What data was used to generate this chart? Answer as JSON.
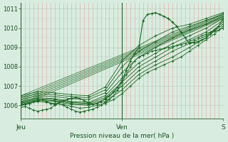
{
  "xlabel": "Pression niveau de la mer( hPa )",
  "bg_color": "#d8ede0",
  "line_color": "#1a6620",
  "axis_color": "#2d5a2d",
  "text_color": "#1a5020",
  "grid_v_color": "#e8a0a0",
  "grid_h_color": "#b8d0c0",
  "ylim": [
    1005.3,
    1011.3
  ],
  "yticks": [
    1006,
    1007,
    1008,
    1009,
    1010,
    1011
  ],
  "xlim": [
    0,
    48
  ],
  "x_jeu": 0,
  "x_ven": 24,
  "x_sam": 48,
  "num_vgrid": 48,
  "series": [
    [
      0,
      1005.9,
      1,
      1005.95,
      2,
      1005.85,
      3,
      1005.75,
      4,
      1005.7,
      5,
      1005.75,
      6,
      1005.8,
      7,
      1005.85,
      8,
      1006.0,
      9,
      1006.1,
      10,
      1006.0,
      11,
      1005.9,
      12,
      1005.8,
      13,
      1005.7,
      14,
      1005.65,
      15,
      1005.7,
      16,
      1005.75,
      17,
      1005.8,
      18,
      1005.9,
      19,
      1006.0,
      20,
      1006.15,
      21,
      1006.3,
      22,
      1006.5,
      23,
      1006.8,
      24,
      1007.2,
      25,
      1007.6,
      26,
      1008.0,
      27,
      1008.3,
      28,
      1008.5,
      29,
      1008.6,
      30,
      1008.7,
      31,
      1008.8,
      32,
      1008.85,
      33,
      1008.9,
      34,
      1008.95,
      35,
      1009.0,
      36,
      1009.05,
      37,
      1009.1,
      38,
      1009.15,
      39,
      1009.2,
      40,
      1009.3,
      41,
      1009.4,
      42,
      1009.5,
      43,
      1009.6,
      44,
      1009.7,
      45,
      1009.8,
      46,
      1009.85,
      47,
      1009.9,
      48,
      1010.0
    ],
    [
      0,
      1006.0,
      2,
      1006.1,
      4,
      1006.2,
      6,
      1006.15,
      8,
      1006.1,
      10,
      1006.05,
      12,
      1005.95,
      14,
      1005.85,
      16,
      1005.9,
      18,
      1006.0,
      20,
      1006.1,
      22,
      1006.3,
      24,
      1006.6,
      26,
      1007.0,
      28,
      1007.4,
      30,
      1007.7,
      32,
      1007.9,
      34,
      1008.1,
      36,
      1008.3,
      38,
      1008.5,
      40,
      1008.8,
      42,
      1009.1,
      44,
      1009.4,
      46,
      1009.7,
      48,
      1010.1
    ],
    [
      0,
      1006.05,
      4,
      1006.25,
      8,
      1006.2,
      12,
      1006.05,
      16,
      1006.0,
      20,
      1006.2,
      24,
      1006.8,
      28,
      1007.6,
      32,
      1008.1,
      36,
      1008.5,
      40,
      1009.0,
      44,
      1009.5,
      48,
      1010.2
    ],
    [
      0,
      1006.1,
      4,
      1006.3,
      8,
      1006.25,
      12,
      1006.1,
      16,
      1006.05,
      20,
      1006.3,
      24,
      1007.0,
      28,
      1007.8,
      32,
      1008.3,
      36,
      1008.8,
      40,
      1009.2,
      44,
      1009.6,
      48,
      1010.3
    ],
    [
      0,
      1006.15,
      4,
      1006.35,
      8,
      1006.3,
      12,
      1006.15,
      16,
      1006.1,
      20,
      1006.4,
      24,
      1007.2,
      28,
      1008.0,
      32,
      1008.5,
      36,
      1009.0,
      40,
      1009.4,
      44,
      1009.8,
      48,
      1010.4
    ],
    [
      0,
      1006.2,
      4,
      1006.4,
      8,
      1006.35,
      12,
      1006.2,
      16,
      1006.15,
      20,
      1006.5,
      24,
      1007.4,
      28,
      1008.2,
      32,
      1008.7,
      36,
      1009.2,
      40,
      1009.6,
      44,
      1010.0,
      48,
      1010.5
    ],
    [
      0,
      1006.3,
      4,
      1006.5,
      8,
      1006.45,
      12,
      1006.35,
      16,
      1006.3,
      20,
      1006.65,
      24,
      1007.7,
      28,
      1008.5,
      32,
      1009.0,
      36,
      1009.5,
      40,
      1009.9,
      44,
      1010.2,
      48,
      1010.6
    ],
    [
      0,
      1006.4,
      4,
      1006.6,
      8,
      1006.55,
      12,
      1006.45,
      16,
      1006.4,
      20,
      1006.8,
      24,
      1008.0,
      28,
      1008.8,
      32,
      1009.3,
      36,
      1009.8,
      40,
      1010.1,
      44,
      1010.4,
      48,
      1010.7
    ],
    [
      0,
      1006.5,
      4,
      1006.7,
      8,
      1006.65,
      12,
      1006.55,
      16,
      1006.5,
      20,
      1006.95,
      24,
      1008.3,
      28,
      1009.1,
      32,
      1009.6,
      36,
      1010.0,
      40,
      1010.2,
      44,
      1010.5,
      48,
      1010.8
    ]
  ],
  "volatile_series": [
    [
      0,
      1006.0,
      1,
      1006.05,
      2,
      1006.1,
      3,
      1006.2,
      4,
      1006.25,
      5,
      1006.3,
      6,
      1006.2,
      7,
      1006.1,
      8,
      1006.05,
      9,
      1006.15,
      10,
      1006.25,
      11,
      1006.3,
      12,
      1006.35,
      13,
      1006.4,
      14,
      1006.35,
      15,
      1006.25,
      16,
      1006.15,
      17,
      1006.05,
      18,
      1006.1,
      19,
      1006.2,
      20,
      1006.35,
      21,
      1006.5,
      22,
      1006.7,
      23,
      1006.95,
      24,
      1007.3,
      25,
      1007.8,
      26,
      1008.3,
      27,
      1008.7,
      28,
      1009.0,
      29,
      1010.4,
      30,
      1010.7,
      31,
      1010.75,
      32,
      1010.8,
      33,
      1010.7,
      34,
      1010.6,
      35,
      1010.5,
      36,
      1010.3,
      37,
      1010.1,
      38,
      1009.8,
      39,
      1009.5,
      40,
      1009.2,
      41,
      1009.25,
      42,
      1009.3,
      43,
      1009.4,
      44,
      1009.5,
      45,
      1009.7,
      46,
      1009.9,
      47,
      1010.1,
      48,
      1010.5
    ]
  ],
  "trend_lines": [
    [
      0,
      1006.0,
      48,
      1010.5
    ],
    [
      0,
      1006.1,
      48,
      1010.55
    ],
    [
      0,
      1006.2,
      48,
      1010.6
    ],
    [
      0,
      1006.3,
      48,
      1010.65
    ],
    [
      0,
      1006.4,
      48,
      1010.7
    ],
    [
      0,
      1006.5,
      48,
      1010.75
    ]
  ]
}
